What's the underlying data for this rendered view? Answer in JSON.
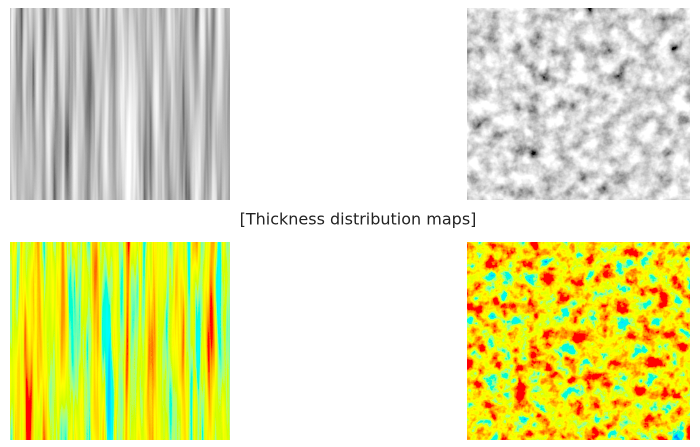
{
  "caption": "[Thickness distribution maps]"
}
